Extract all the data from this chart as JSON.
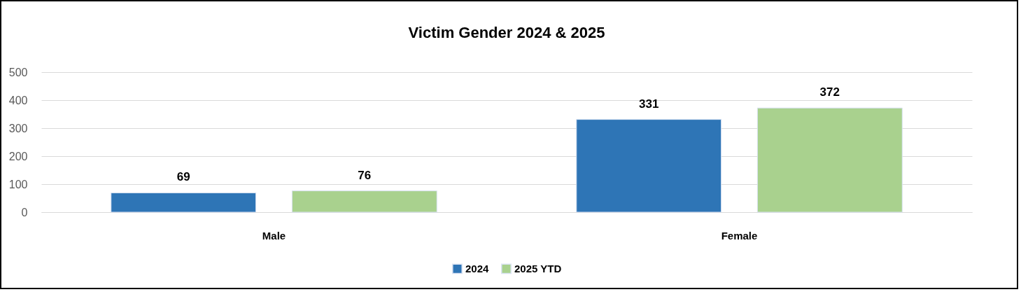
{
  "chart_data": {
    "type": "bar",
    "title": "Victim Gender 2024 & 2025",
    "categories": [
      "Male",
      "Female"
    ],
    "series": [
      {
        "name": "2024",
        "color": "#2e75b6",
        "values": [
          69,
          331
        ]
      },
      {
        "name": "2025 YTD",
        "color": "#a9d18e",
        "values": [
          76,
          372
        ]
      }
    ],
    "ylim": [
      0,
      500
    ],
    "yticks": [
      0,
      100,
      200,
      300,
      400,
      500
    ],
    "grid": "y",
    "legend": "bottom",
    "data_labels": true
  }
}
